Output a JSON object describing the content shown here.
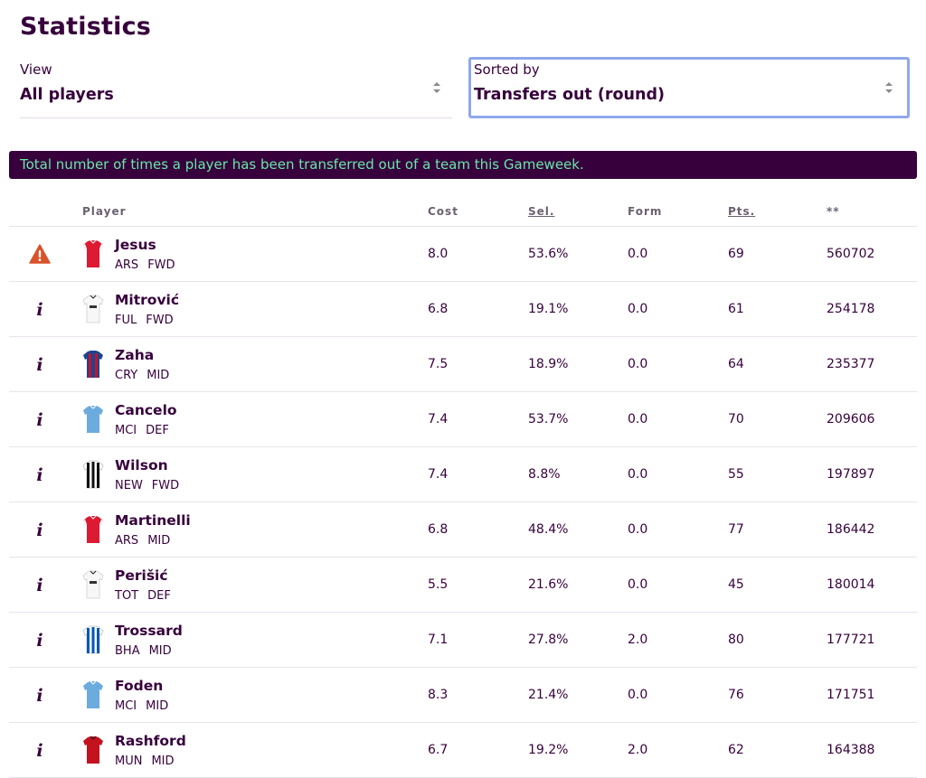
{
  "page": {
    "title": "Statistics"
  },
  "filters": {
    "view": {
      "label": "View",
      "value": "All players"
    },
    "sort": {
      "label": "Sorted by",
      "value": "Transfers out (round)"
    }
  },
  "banner": {
    "text": "Total number of times a player has been transferred out of a team this Gameweek."
  },
  "colors": {
    "primary": "#37003c",
    "banner_text": "#68e8a8",
    "focus_border": "#8fa8ec",
    "warning": "#d9532a"
  },
  "table": {
    "headers": {
      "player": "Player",
      "cost": "Cost",
      "sel": "Sel.",
      "form": "Form",
      "pts": "Pts.",
      "transfers": "**"
    },
    "rows": [
      {
        "icon": "warning-icon",
        "shirt": "red",
        "name": "Jesus",
        "team": "ARS",
        "pos": "FWD",
        "cost": "8.0",
        "sel": "53.6%",
        "form": "0.0",
        "pts": "69",
        "transfers": "560702"
      },
      {
        "icon": "info-icon",
        "shirt": "white",
        "name": "Mitrović",
        "team": "FUL",
        "pos": "FWD",
        "cost": "6.8",
        "sel": "19.1%",
        "form": "0.0",
        "pts": "61",
        "transfers": "254178"
      },
      {
        "icon": "info-icon",
        "shirt": "palace",
        "name": "Zaha",
        "team": "CRY",
        "pos": "MID",
        "cost": "7.5",
        "sel": "18.9%",
        "form": "0.0",
        "pts": "64",
        "transfers": "235377"
      },
      {
        "icon": "info-icon",
        "shirt": "skyblue",
        "name": "Cancelo",
        "team": "MCI",
        "pos": "DEF",
        "cost": "7.4",
        "sel": "53.7%",
        "form": "0.0",
        "pts": "70",
        "transfers": "209606"
      },
      {
        "icon": "info-icon",
        "shirt": "stripes",
        "name": "Wilson",
        "team": "NEW",
        "pos": "FWD",
        "cost": "7.4",
        "sel": "8.8%",
        "form": "0.0",
        "pts": "55",
        "transfers": "197897"
      },
      {
        "icon": "info-icon",
        "shirt": "red",
        "name": "Martinelli",
        "team": "ARS",
        "pos": "MID",
        "cost": "6.8",
        "sel": "48.4%",
        "form": "0.0",
        "pts": "77",
        "transfers": "186442"
      },
      {
        "icon": "info-icon",
        "shirt": "white",
        "name": "Perišić",
        "team": "TOT",
        "pos": "DEF",
        "cost": "5.5",
        "sel": "21.6%",
        "form": "0.0",
        "pts": "45",
        "transfers": "180014"
      },
      {
        "icon": "info-icon",
        "shirt": "bluestripes",
        "name": "Trossard",
        "team": "BHA",
        "pos": "MID",
        "cost": "7.1",
        "sel": "27.8%",
        "form": "2.0",
        "pts": "80",
        "transfers": "177721"
      },
      {
        "icon": "info-icon",
        "shirt": "skyblue",
        "name": "Foden",
        "team": "MCI",
        "pos": "MID",
        "cost": "8.3",
        "sel": "21.4%",
        "form": "0.0",
        "pts": "76",
        "transfers": "171751"
      },
      {
        "icon": "info-icon",
        "shirt": "darkred",
        "name": "Rashford",
        "team": "MUN",
        "pos": "MID",
        "cost": "6.7",
        "sel": "19.2%",
        "form": "2.0",
        "pts": "62",
        "transfers": "164388"
      }
    ]
  }
}
